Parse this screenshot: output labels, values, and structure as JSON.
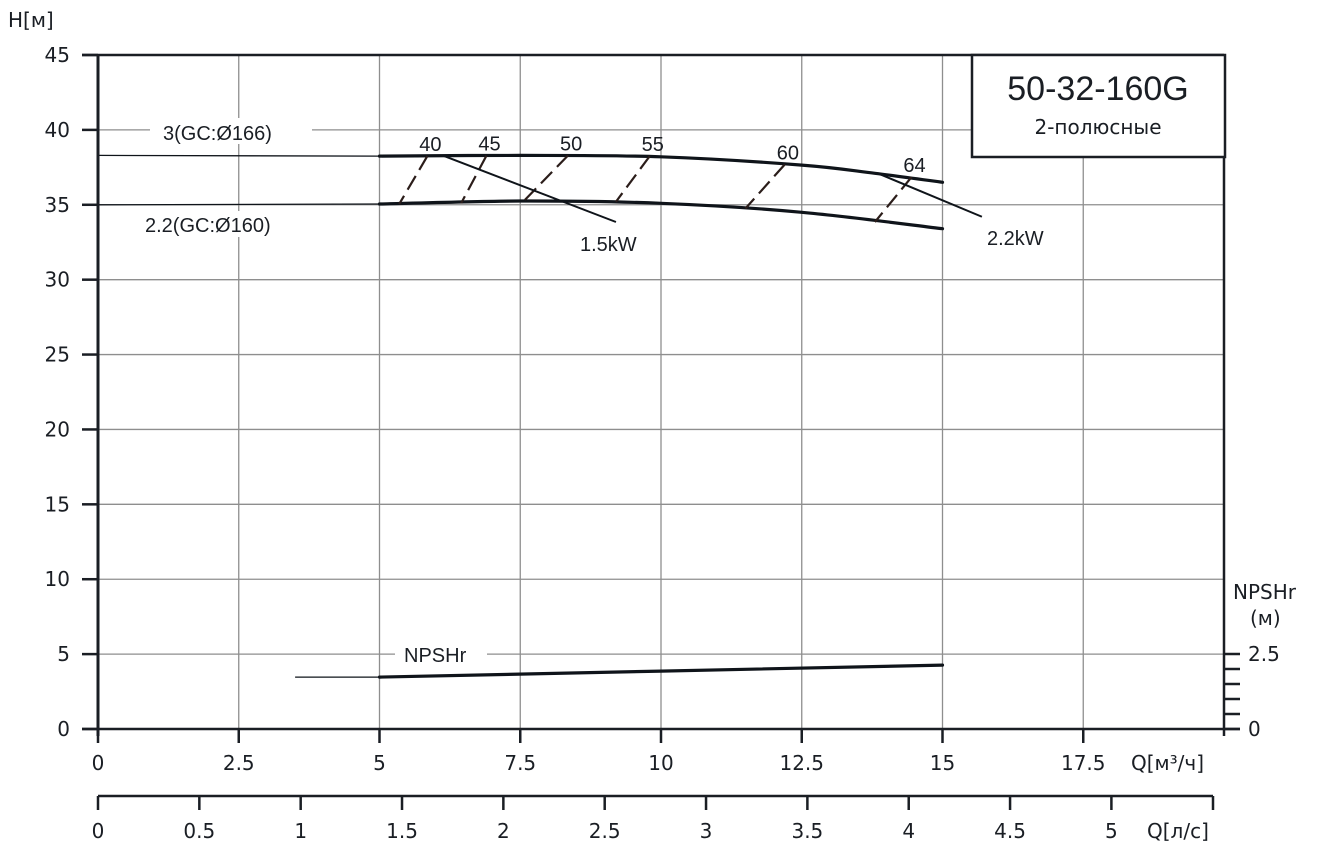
{
  "chart_data": {
    "type": "line",
    "title": "50-32-160G",
    "subtitle": "2-полюсные",
    "y_axis": {
      "label": "H[м]",
      "range": [
        0,
        45
      ],
      "ticks": [
        0,
        5,
        10,
        15,
        20,
        25,
        30,
        35,
        40,
        45
      ]
    },
    "x_axis_primary": {
      "label": "Q[м³/ч]",
      "range": [
        0,
        20
      ],
      "ticks": [
        0,
        2.5,
        5,
        7.5,
        10,
        12.5,
        15,
        17.5
      ],
      "tick_labels": [
        "0",
        "2.5",
        "5",
        "7.5",
        "10",
        "12.5",
        "15",
        "17.5"
      ]
    },
    "x_axis_secondary": {
      "label": "Q[л/с]",
      "ticks": [
        0,
        0.5,
        1,
        1.5,
        2,
        2.5,
        3,
        3.5,
        4,
        4.5,
        5
      ],
      "tick_labels": [
        "0",
        "0.5",
        "1",
        "1.5",
        "2",
        "2.5",
        "3",
        "3.5",
        "4",
        "4.5",
        "5"
      ]
    },
    "y_axis_right": {
      "label_line1": "NPSHr",
      "label_line2": "(м)",
      "range": [
        0,
        2.5
      ],
      "ticks": [
        0,
        2.5
      ],
      "tick_labels": [
        "0",
        "2.5"
      ],
      "minor_step": 0.5
    },
    "grid": true,
    "series": [
      {
        "name": "3(GC:Ø166)",
        "thin_part": {
          "x": [
            0,
            5
          ],
          "y": [
            38.3,
            38.25
          ]
        },
        "x": [
          5,
          7.5,
          10,
          12.5,
          13.8,
          15
        ],
        "y": [
          38.25,
          38.3,
          38.2,
          37.65,
          37.1,
          36.5
        ]
      },
      {
        "name": "2.2(GC:Ø160)",
        "thin_part": {
          "x": [
            0,
            5
          ],
          "y": [
            35.0,
            35.05
          ]
        },
        "x": [
          5,
          7.5,
          10,
          12.5,
          15
        ],
        "y": [
          35.05,
          35.25,
          35.1,
          34.5,
          33.4
        ]
      },
      {
        "name": "NPSHr",
        "axis": "right",
        "thin_part": {
          "x": [
            3.5,
            5
          ],
          "y": [
            1.73,
            1.73
          ]
        },
        "x": [
          5,
          15
        ],
        "y": [
          1.73,
          2.13
        ]
      }
    ],
    "efficiency_lines": [
      {
        "label": "40",
        "top": [
          5.85,
          38.25
        ],
        "bottom": [
          5.35,
          35.05
        ]
      },
      {
        "label": "45",
        "top": [
          6.9,
          38.28
        ],
        "bottom": [
          6.45,
          35.1
        ]
      },
      {
        "label": "50",
        "top": [
          8.35,
          38.3
        ],
        "bottom": [
          7.55,
          35.2
        ]
      },
      {
        "label": "55",
        "top": [
          9.8,
          38.25
        ],
        "bottom": [
          9.2,
          35.2
        ]
      },
      {
        "label": "60",
        "top": [
          12.2,
          37.7
        ],
        "bottom": [
          11.5,
          34.75
        ]
      },
      {
        "label": "64",
        "top": [
          14.45,
          36.85
        ],
        "bottom": [
          13.8,
          33.85
        ]
      }
    ],
    "power_lines": [
      {
        "label": "1.5kW",
        "from": [
          6.15,
          38.25
        ],
        "to": [
          9.2,
          33.85
        ]
      },
      {
        "label": "2.2kW",
        "from": [
          13.85,
          37.1
        ],
        "to": [
          15.7,
          34.2
        ]
      }
    ]
  },
  "labels": {
    "y_axis_title": "H[м]",
    "x_axis_title": "Q[м³/ч]",
    "x2_axis_title": "Q[л/с]",
    "npsh_axis_title_1": "NPSHr",
    "npsh_axis_title_2": "(м)",
    "box_title": "50-32-160G",
    "box_subtitle": "2-полюсные",
    "curve_upper": "3(GC:Ø166)",
    "curve_lower": "2.2(GC:Ø160)",
    "curve_npsh": "NPSHr",
    "power_1": "1.5kW",
    "power_2": "2.2kW"
  },
  "colors": {
    "axis": "#1a1e24",
    "grid": "#8e8e8e",
    "curve": "#0f141a",
    "dash": "#2b1d1a",
    "background": "#ffffff"
  }
}
